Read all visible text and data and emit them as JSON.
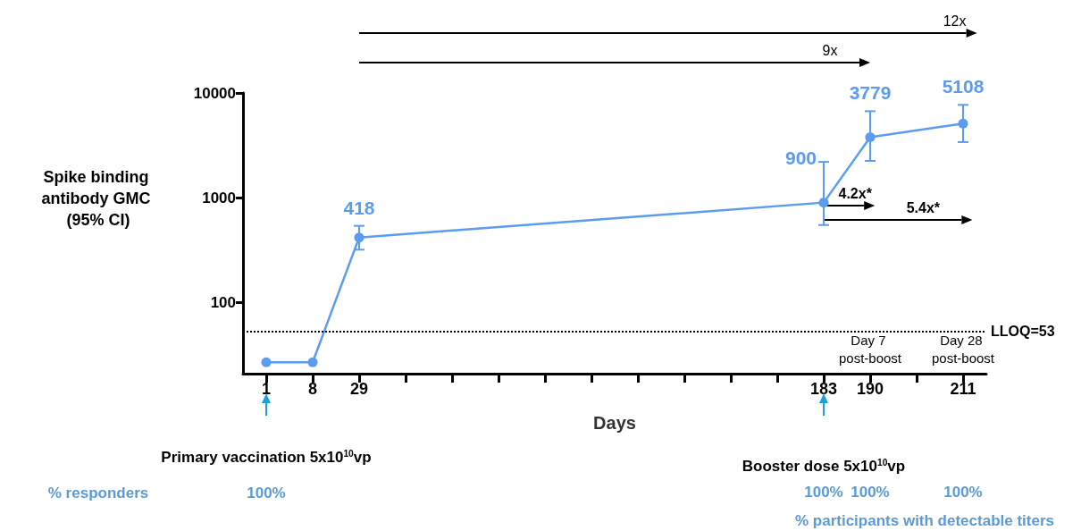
{
  "chart_data": {
    "type": "line",
    "ylabel": "Spike binding antibody GMC (95% CI)",
    "xlabel": "Days",
    "categories": [
      "1",
      "8",
      "29",
      null,
      null,
      null,
      null,
      null,
      null,
      null,
      null,
      null,
      "183",
      "190",
      null,
      "211"
    ],
    "series": [
      {
        "color": "#5b9cf0",
        "values": [
          27,
          27,
          418,
          null,
          null,
          null,
          null,
          null,
          null,
          null,
          null,
          null,
          900,
          3779,
          null,
          5108
        ],
        "errors": [
          null,
          null,
          [
            320,
            540
          ],
          null,
          null,
          null,
          null,
          null,
          null,
          null,
          null,
          null,
          [
            550,
            2200
          ],
          [
            2250,
            6700
          ],
          null,
          [
            3400,
            7700
          ]
        ],
        "value_labels": [
          null,
          null,
          "418",
          null,
          null,
          null,
          null,
          null,
          null,
          null,
          null,
          null,
          "900",
          "3779",
          null,
          "5108"
        ]
      }
    ],
    "log": true,
    "ylim": [
      21,
      10000
    ],
    "yticks": [
      100,
      {
        "value": 1000,
        "label": "1000"
      },
      {
        "value": 10000,
        "label": "10000"
      }
    ],
    "marker": "circle",
    "line_style": "solid",
    "grid": false,
    "ref_lines": [
      {
        "axis": "y",
        "value": 53,
        "label": "LLOQ=53",
        "line_style": "dotted",
        "color": "#000000"
      }
    ],
    "annotations": [
      "12x",
      "9x",
      "4.2x*",
      "5.4x*",
      "Day 7 post-boost",
      "Day 28 post-boost",
      "Primary vaccination 5x10$^{10}$vp",
      "Booster dose 5x10$^{10}$vp",
      "% responders",
      "100%",
      "100%",
      "100%",
      "100%",
      "% participants with detectable titers"
    ]
  }
}
